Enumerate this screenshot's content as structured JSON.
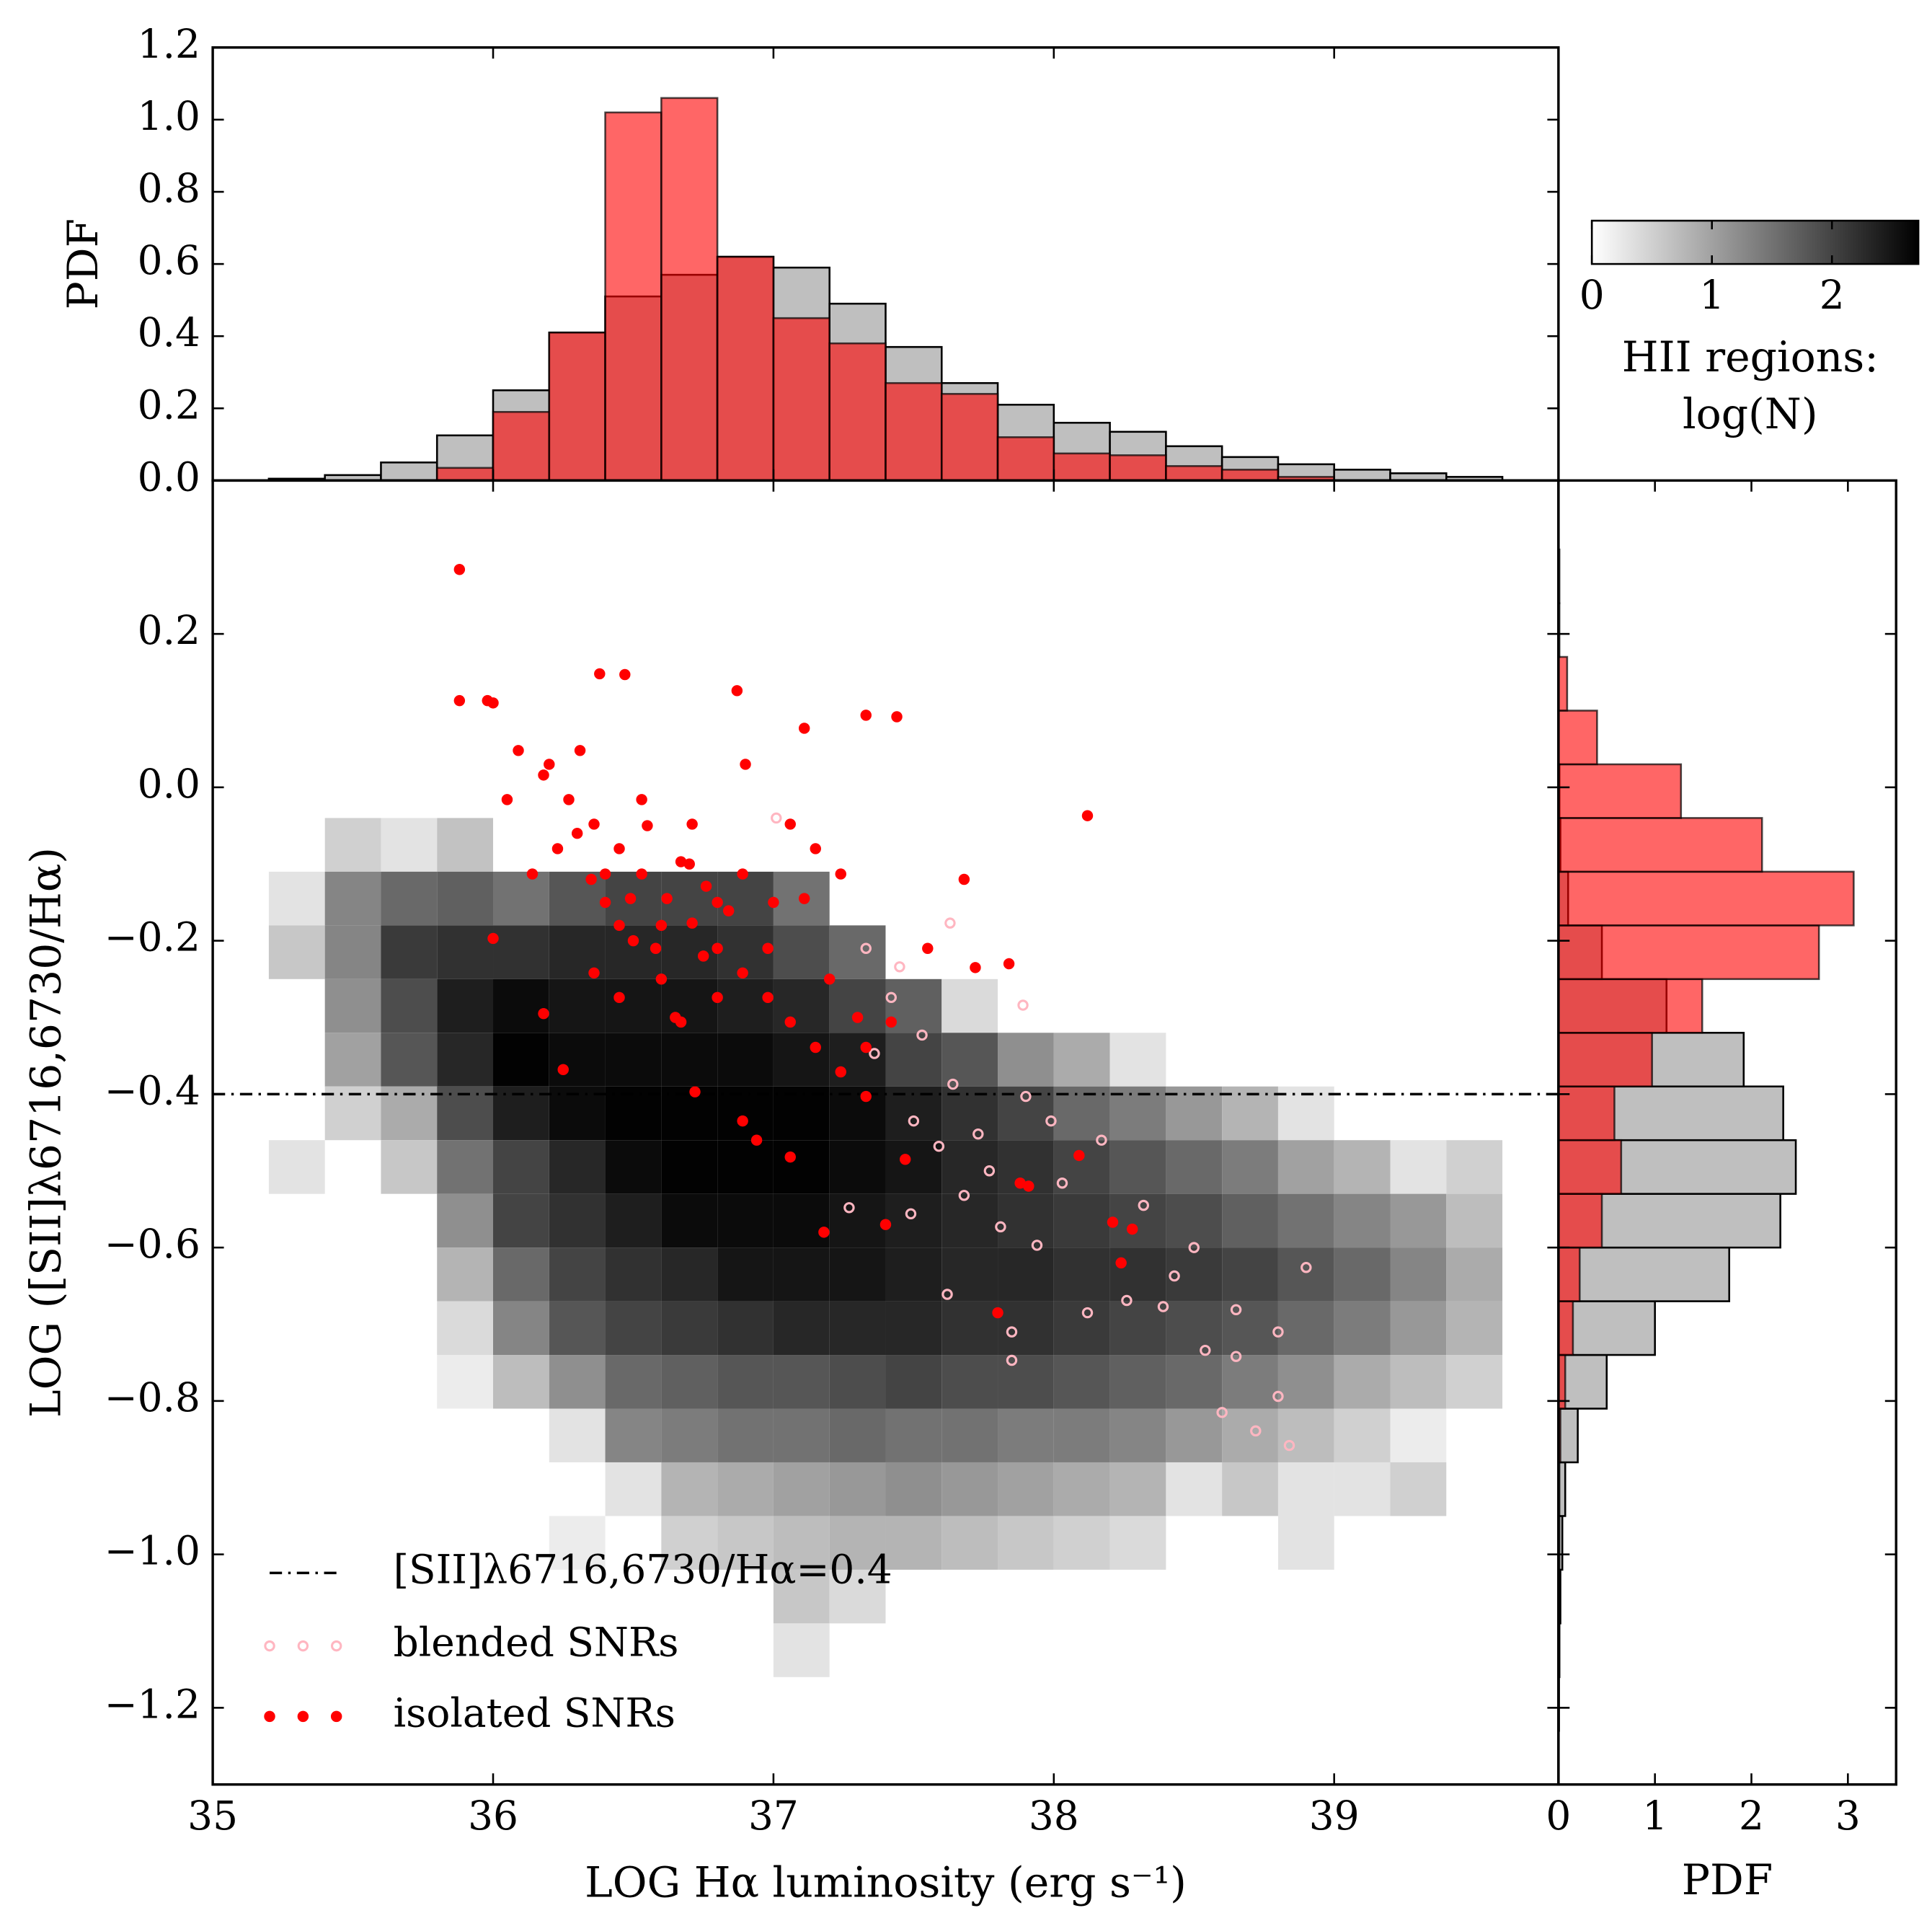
{
  "chart_data": [
    {
      "type": "histogram",
      "ylabel": "PDF",
      "bins": [
        35.2,
        35.4,
        35.6,
        35.8,
        36.0,
        36.2,
        36.4,
        36.6,
        36.8,
        37.0,
        37.2,
        37.4,
        37.6,
        37.8,
        38.0,
        38.2,
        38.4,
        38.6,
        38.8,
        39.0,
        39.2,
        39.4,
        39.6
      ],
      "xlim": [
        35,
        39.8
      ],
      "ylim": [
        0,
        1.2
      ],
      "yticks": [
        {
          "value": 0,
          "label": "0.0"
        },
        0.2,
        0.4,
        0.6,
        0.8,
        {
          "value": 1,
          "label": "1.0"
        },
        1.2
      ],
      "series": [
        {
          "color": "#bfbfbf",
          "values": [
            0.005,
            0.015,
            0.05,
            0.125,
            0.25,
            0.41,
            0.51,
            0.57,
            0.62,
            0.59,
            0.49,
            0.37,
            0.27,
            0.21,
            0.16,
            0.135,
            0.095,
            0.065,
            0.045,
            0.03,
            0.02,
            0.01
          ]
        },
        {
          "color": "#ff0000",
          "alpha": 0.6,
          "values": [
            0,
            0,
            0,
            0.035,
            0.19,
            0.41,
            1.02,
            1.06,
            0.62,
            0.45,
            0.38,
            0.27,
            0.24,
            0.12,
            0.075,
            0.07,
            0.04,
            0.03,
            0.01,
            0,
            0,
            0
          ]
        }
      ]
    },
    {
      "type": "scatter",
      "xlabel": "LOG Hα luminosity (erg s⁻¹)",
      "ylabel": "LOG ([SII]λ6716,6730/Hα)",
      "xlim": [
        35,
        39.8
      ],
      "ylim": [
        -1.3,
        0.4
      ],
      "xticks": [
        35,
        36,
        37,
        38,
        39
      ],
      "yticks": [
        0.2,
        {
          "value": 0,
          "label": "0.0"
        },
        {
          "value": -0.2,
          "label": "−0.2"
        },
        {
          "value": -0.4,
          "label": "−0.4"
        },
        {
          "value": -0.6,
          "label": "−0.6"
        },
        {
          "value": -0.8,
          "label": "−0.8"
        },
        {
          "value": -1.0,
          "label": "−1.0"
        },
        {
          "value": -1.2,
          "label": "−1.2"
        }
      ],
      "legend": "lower left",
      "hline": {
        "value": -0.4,
        "label": "[SII]λ6716,6730/Hα=0.4",
        "color": "#000000"
      },
      "heatmap": {
        "x_bins": [
          35.2,
          35.4,
          35.6,
          35.8,
          36.0,
          36.2,
          36.4,
          36.6,
          36.8,
          37.0,
          37.2,
          37.4,
          37.6,
          37.8,
          38.0,
          38.2,
          38.4,
          38.6,
          38.8,
          39.0,
          39.2,
          39.4,
          39.6
        ],
        "y_bins": [
          -0.04,
          -0.11,
          -0.18,
          -0.25,
          -0.32,
          -0.39,
          -0.46,
          -0.53,
          -0.6,
          -0.67,
          -0.74,
          -0.81,
          -0.88,
          -0.95,
          -1.02,
          -1.09,
          -1.16
        ],
        "values": [
          [
            null,
            0.5,
            0.3,
            0.65,
            null,
            null,
            null,
            null,
            null,
            null,
            null,
            null,
            null,
            null,
            null,
            null,
            null,
            null,
            null,
            null,
            null,
            null
          ],
          [
            0.3,
            1.3,
            1.6,
            1.7,
            1.5,
            1.8,
            2.0,
            2.0,
            2.0,
            1.5,
            null,
            null,
            null,
            null,
            null,
            null,
            null,
            null,
            null,
            null,
            null,
            null
          ],
          [
            0.6,
            1.3,
            2.1,
            2.2,
            2.2,
            2.3,
            2.3,
            2.3,
            2.2,
            1.9,
            1.6,
            null,
            null,
            null,
            null,
            null,
            null,
            null,
            null,
            null,
            null,
            null
          ],
          [
            null,
            1.2,
            1.9,
            2.4,
            2.6,
            2.5,
            2.5,
            2.5,
            2.4,
            2.3,
            2.0,
            1.7,
            0.4,
            null,
            null,
            null,
            null,
            null,
            null,
            null,
            null,
            null
          ],
          [
            null,
            1.0,
            1.8,
            2.3,
            2.7,
            2.6,
            2.6,
            2.6,
            2.6,
            2.5,
            2.4,
            2.0,
            1.8,
            1.2,
            0.9,
            0.3,
            null,
            null,
            null,
            null,
            null,
            null
          ],
          [
            null,
            0.5,
            0.9,
            1.9,
            2.4,
            2.6,
            2.7,
            2.7,
            2.7,
            2.7,
            2.6,
            2.4,
            2.2,
            2.0,
            1.6,
            1.4,
            1.1,
            0.8,
            0.3,
            null,
            null,
            null
          ],
          [
            0.3,
            null,
            0.6,
            1.5,
            2.0,
            2.3,
            2.6,
            2.7,
            2.7,
            2.7,
            2.6,
            2.5,
            2.3,
            2.2,
            2.0,
            1.8,
            1.6,
            1.4,
            1.0,
            0.8,
            0.3,
            0.5
          ],
          [
            null,
            null,
            null,
            1.2,
            2.0,
            2.2,
            2.4,
            2.6,
            2.6,
            2.6,
            2.5,
            2.4,
            2.3,
            2.2,
            2.1,
            2.0,
            1.9,
            1.7,
            1.5,
            1.3,
            1.1,
            0.7
          ],
          [
            null,
            null,
            null,
            0.8,
            1.6,
            2.0,
            2.2,
            2.3,
            2.5,
            2.5,
            2.5,
            2.4,
            2.3,
            2.3,
            2.2,
            2.2,
            2.1,
            2.0,
            1.8,
            1.6,
            1.3,
            0.9
          ],
          [
            null,
            null,
            null,
            0.4,
            1.3,
            1.8,
            2.0,
            2.1,
            2.2,
            2.3,
            2.3,
            2.3,
            2.2,
            2.2,
            2.1,
            2.0,
            1.9,
            1.8,
            1.6,
            1.4,
            1.1,
            0.8
          ],
          [
            null,
            null,
            null,
            0.2,
            0.7,
            1.2,
            1.6,
            1.7,
            1.8,
            1.8,
            1.9,
            2.0,
            1.9,
            1.9,
            1.8,
            1.7,
            1.6,
            1.4,
            1.2,
            0.9,
            0.7,
            0.5
          ],
          [
            null,
            null,
            null,
            null,
            null,
            0.3,
            1.3,
            1.4,
            1.5,
            1.5,
            1.6,
            1.5,
            1.5,
            1.4,
            1.4,
            1.3,
            1.1,
            0.9,
            0.7,
            0.5,
            0.2,
            null
          ],
          [
            null,
            null,
            null,
            null,
            null,
            null,
            0.3,
            0.8,
            0.9,
            1.0,
            1.1,
            1.2,
            1.1,
            1.0,
            0.9,
            0.8,
            0.3,
            0.6,
            0.3,
            0.3,
            0.5,
            null
          ],
          [
            null,
            null,
            null,
            null,
            null,
            0.2,
            null,
            0.5,
            0.6,
            0.7,
            0.8,
            0.8,
            0.7,
            0.6,
            0.5,
            0.4,
            null,
            null,
            0.3,
            null,
            null,
            null
          ],
          [
            null,
            null,
            null,
            null,
            null,
            null,
            null,
            null,
            null,
            0.6,
            0.4,
            null,
            null,
            null,
            null,
            null,
            null,
            null,
            null,
            null,
            null,
            null
          ],
          [
            null,
            null,
            null,
            null,
            null,
            null,
            null,
            null,
            null,
            0.3,
            null,
            null,
            null,
            null,
            null,
            null,
            null,
            null,
            null,
            null,
            null,
            null
          ]
        ]
      },
      "series": [
        {
          "name": "blended SNRs",
          "color": "#ffb6c1",
          "marker": "open",
          "x": [
            37.01,
            37.63,
            37.89,
            38.9,
            38.84,
            38.72,
            38.6,
            38.8,
            38.8,
            38.65,
            38.5,
            38.32,
            38.17,
            37.99,
            37.85,
            37.85,
            37.62,
            37.49,
            37.27,
            37.36,
            37.42,
            37.53,
            37.64,
            37.73,
            37.77,
            37.68,
            37.59,
            37.9,
            38.03,
            38.12,
            38.39,
            38.26,
            38.43,
            38.54,
            38.65,
            37.33,
            37.45,
            37.5,
            37.81,
            37.94
          ],
          "values": [
            -0.04,
            -0.177,
            -0.284,
            -0.626,
            -0.858,
            -0.839,
            -0.815,
            -0.794,
            -0.71,
            -0.681,
            -0.6,
            -0.545,
            -0.46,
            -0.435,
            -0.71,
            -0.747,
            -0.661,
            -0.556,
            -0.548,
            -0.347,
            -0.274,
            -0.323,
            -0.387,
            -0.452,
            -0.5,
            -0.532,
            -0.468,
            -0.403,
            -0.516,
            -0.685,
            -0.677,
            -0.669,
            -0.637,
            -0.734,
            -0.742,
            -0.21,
            -0.234,
            -0.435,
            -0.573,
            -0.597
          ]
        },
        {
          "name": "isolated SNRs",
          "color": "#ff0000",
          "marker": "filled",
          "x": [
            35.88,
            35.88,
            35.98,
            36.0,
            36.38,
            36.47,
            36.87,
            37.33,
            37.44,
            38.12,
            37.11,
            36.9,
            37.84,
            37.72,
            37.68,
            37.88,
            37.91,
            37.8,
            38.21,
            38.24,
            38.28,
            38.09,
            37.4,
            37.18,
            37.47,
            36.0,
            36.18,
            36.25,
            36.72,
            36.89,
            37.06,
            36.94,
            36.09,
            36.18,
            36.27,
            36.36,
            36.45,
            36.53,
            36.62,
            36.71,
            36.8,
            36.89,
            36.98,
            37.06,
            37.15,
            37.24,
            37.33,
            36.49,
            36.4,
            36.58,
            36.67,
            36.76,
            36.84,
            36.31,
            36.53,
            36.71,
            36.89,
            37.11,
            37.24,
            37.42,
            37.33,
            37.55,
            36.36,
            36.45,
            36.67,
            36.14,
            36.23,
            36.05,
            37.06,
            37.15,
            36.98,
            36.8,
            36.2,
            36.3,
            36.4,
            36.5,
            36.6,
            36.7,
            36.8,
            36.55,
            36.65,
            37.0,
            37.2,
            37.3,
            36.45,
            36.35,
            36.6,
            36.75
          ],
          "values": [
            0.284,
            0.113,
            0.113,
            0.11,
            0.148,
            0.147,
            0.126,
            0.094,
            0.092,
            -0.037,
            0.077,
            0.03,
            -0.23,
            -0.235,
            -0.12,
            -0.516,
            -0.52,
            -0.685,
            -0.567,
            -0.62,
            -0.576,
            -0.48,
            -0.57,
            -0.58,
            -0.485,
            -0.197,
            -0.295,
            -0.368,
            -0.397,
            -0.435,
            -0.482,
            -0.46,
            0.048,
            0.016,
            -0.016,
            -0.048,
            -0.08,
            -0.113,
            -0.145,
            -0.177,
            -0.21,
            -0.242,
            -0.274,
            -0.306,
            -0.339,
            -0.371,
            -0.403,
            -0.145,
            -0.113,
            -0.21,
            -0.097,
            -0.129,
            -0.161,
            0.048,
            -0.016,
            -0.048,
            -0.113,
            -0.145,
            -0.113,
            -0.306,
            -0.339,
            -0.21,
            -0.242,
            -0.274,
            -0.306,
            -0.113,
            -0.08,
            -0.016,
            -0.048,
            -0.08,
            -0.21,
            -0.274,
            0.03,
            -0.06,
            -0.15,
            -0.2,
            -0.25,
            -0.1,
            -0.15,
            -0.05,
            -0.3,
            -0.15,
            -0.25,
            -0.3,
            -0.18,
            -0.12,
            -0.18,
            -0.22
          ]
        }
      ]
    },
    {
      "type": "histogram",
      "orientation": "horizontal",
      "xlabel": "PDF",
      "bins": [
        -1.23,
        -1.16,
        -1.09,
        -1.02,
        -0.95,
        -0.88,
        -0.81,
        -0.74,
        -0.67,
        -0.6,
        -0.53,
        -0.46,
        -0.39,
        -0.32,
        -0.25,
        -0.18,
        -0.11,
        -0.04,
        0.03,
        0.1,
        0.17,
        0.24,
        0.31
      ],
      "xlim": [
        0,
        3.5
      ],
      "ylim": [
        -1.3,
        0.4
      ],
      "xticks": [
        0,
        1,
        2,
        3
      ],
      "series": [
        {
          "color": "#bfbfbf",
          "values": [
            0.005,
            0.01,
            0.02,
            0.04,
            0.07,
            0.2,
            0.5,
            1.0,
            1.77,
            2.3,
            2.46,
            2.33,
            1.92,
            1.12,
            0.45,
            0.1,
            0.02,
            0.01,
            0,
            0,
            0,
            0
          ]
        },
        {
          "color": "#ff0000",
          "alpha": 0.6,
          "values": [
            0.005,
            0.005,
            0.005,
            0.01,
            0.01,
            0.02,
            0.07,
            0.15,
            0.22,
            0.45,
            0.65,
            0.58,
            0.97,
            1.49,
            2.7,
            3.06,
            2.11,
            1.27,
            0.4,
            0.09,
            0.01,
            0.01
          ]
        }
      ]
    },
    {
      "type": "colorbar",
      "label": [
        "HII regions:",
        "log(N)"
      ],
      "cmap": "gray_r",
      "clim": [
        0,
        2.72
      ],
      "ticks": [
        0,
        1,
        2
      ]
    }
  ]
}
